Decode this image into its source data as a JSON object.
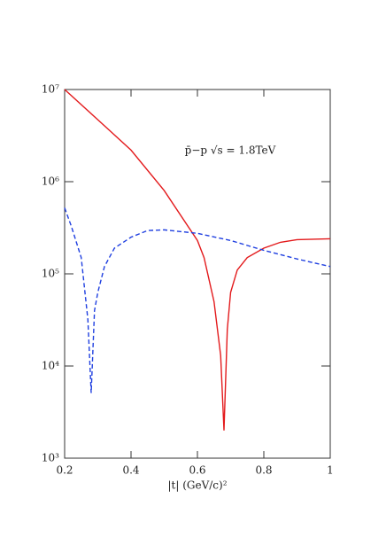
{
  "chart_data": {
    "type": "line",
    "annotation": "p̄−p  √s = 1.8TeV",
    "x_label": "|t|  (GeV/c)²",
    "xlim": [
      0.2,
      1
    ],
    "xticks": [
      0.2,
      0.4,
      0.6,
      0.8,
      1
    ],
    "ylim": [
      1000,
      10000000
    ],
    "yticks": [
      {
        "value": 1000,
        "label": "10³"
      },
      {
        "value": 10000,
        "label": "10⁴"
      },
      {
        "value": 100000,
        "label": "10⁵"
      },
      {
        "value": 1000000,
        "label": "10⁶"
      },
      {
        "value": 10000000,
        "label": "10⁷"
      }
    ],
    "log_y": true,
    "series": [
      {
        "color": "#e31a1c",
        "dash": false,
        "x": [
          0.2,
          0.3,
          0.4,
          0.5,
          0.6,
          0.62,
          0.65,
          0.67,
          0.68,
          0.69,
          0.7,
          0.72,
          0.75,
          0.8,
          0.85,
          0.9,
          1.0
        ],
        "values": [
          10000000,
          4700000,
          2200000,
          800000,
          230000,
          150000,
          50000,
          13000,
          2000,
          25000,
          63000,
          110000,
          150000,
          190000,
          220000,
          235000,
          240000
        ]
      },
      {
        "color": "#1f3fe0",
        "dash": true,
        "x": [
          0.2,
          0.22,
          0.25,
          0.27,
          0.28,
          0.29,
          0.3,
          0.32,
          0.35,
          0.4,
          0.45,
          0.5,
          0.6,
          0.7,
          0.8,
          0.9,
          1.0
        ],
        "values": [
          520000,
          330000,
          150000,
          32000,
          5100,
          40000,
          63000,
          120000,
          190000,
          250000,
          295000,
          300000,
          275000,
          230000,
          180000,
          145000,
          120000
        ]
      }
    ]
  }
}
